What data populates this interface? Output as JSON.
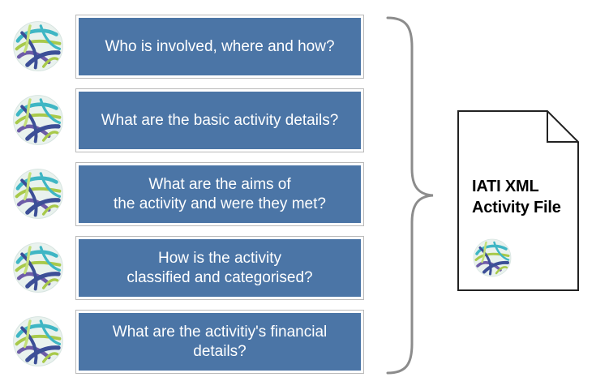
{
  "questions": [
    {
      "lines": [
        "Who is involved, where and how?"
      ]
    },
    {
      "lines": [
        "What are the basic activity details?"
      ]
    },
    {
      "lines": [
        "What are the aims of",
        "the activity and were they met?"
      ]
    },
    {
      "lines": [
        "How is the activity",
        "classified and categorised?"
      ]
    },
    {
      "lines": [
        "What are the activitiy's financial",
        "details?"
      ]
    }
  ],
  "file": {
    "title_line1": "IATI XML",
    "title_line2": "Activity File"
  },
  "colors": {
    "box_fill": "#4b75a6",
    "box_border": "#b9b9b9",
    "logo_dark_blue": "#3c4f97",
    "logo_teal": "#3fb6c4",
    "logo_green": "#a8c94a",
    "logo_purple": "#6d5ca8"
  },
  "icons": {
    "row_logo": "iati-globe-logo",
    "brace": "right-curly-brace",
    "file": "document-file-icon"
  }
}
